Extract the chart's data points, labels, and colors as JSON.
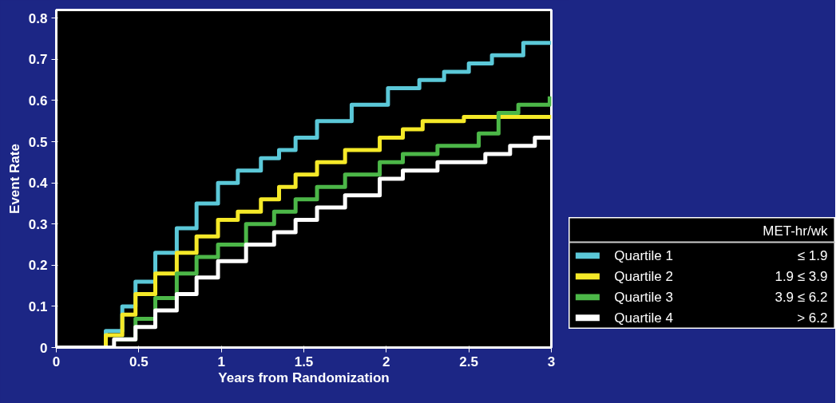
{
  "chart_data": {
    "type": "step",
    "xlabel": "Years from Randomization",
    "ylabel": "Event Rate",
    "xlim": [
      0,
      3
    ],
    "ylim": [
      0,
      0.82
    ],
    "xticks": [
      0,
      0.5,
      1,
      1.5,
      2,
      2.5,
      3
    ],
    "yticks": [
      0,
      0.1,
      0.2,
      0.3,
      0.4,
      0.5,
      0.6,
      0.7,
      0.8
    ],
    "grid": false,
    "legend": "right",
    "legend_title": "MET-hr/wk",
    "marker": "none",
    "line_style": "solid",
    "annotations": [
      "≤ 1.9",
      "1.9 ≤ 3.9",
      "3.9 ≤ 6.2",
      "> 6.2"
    ],
    "series": [
      {
        "name": "Quartile 1",
        "color": "#5bc8d8",
        "x": [
          0,
          0.25,
          0.3,
          0.4,
          0.48,
          0.6,
          0.73,
          0.85,
          0.98,
          1.1,
          1.24,
          1.35,
          1.45,
          1.58,
          1.79,
          2.01,
          2.2,
          2.35,
          2.5,
          2.64,
          2.83,
          3.0
        ],
        "values": [
          0,
          0,
          0.04,
          0.1,
          0.16,
          0.23,
          0.29,
          0.35,
          0.4,
          0.43,
          0.46,
          0.48,
          0.51,
          0.55,
          0.59,
          0.63,
          0.65,
          0.67,
          0.69,
          0.71,
          0.74,
          0.74
        ]
      },
      {
        "name": "Quartile 2",
        "color": "#f5e928",
        "x": [
          0,
          0.25,
          0.3,
          0.4,
          0.48,
          0.6,
          0.73,
          0.85,
          0.98,
          1.1,
          1.24,
          1.35,
          1.45,
          1.58,
          1.75,
          1.96,
          2.1,
          2.22,
          2.47,
          3.0
        ],
        "values": [
          0,
          0,
          0.03,
          0.08,
          0.13,
          0.18,
          0.23,
          0.27,
          0.31,
          0.33,
          0.36,
          0.39,
          0.42,
          0.45,
          0.48,
          0.51,
          0.53,
          0.55,
          0.56,
          0.56
        ]
      },
      {
        "name": "Quartile 3",
        "color": "#4cb748",
        "x": [
          0.35,
          0.48,
          0.6,
          0.73,
          0.85,
          0.98,
          1.15,
          1.32,
          1.45,
          1.58,
          1.75,
          1.96,
          2.1,
          2.31,
          2.56,
          2.68,
          2.8,
          2.99
        ],
        "values": [
          0.02,
          0.07,
          0.12,
          0.18,
          0.22,
          0.25,
          0.3,
          0.33,
          0.36,
          0.39,
          0.42,
          0.45,
          0.47,
          0.49,
          0.52,
          0.57,
          0.59,
          0.61
        ]
      },
      {
        "name": "Quartile 4",
        "color": "#ffffff",
        "x": [
          0,
          0.27,
          0.35,
          0.48,
          0.6,
          0.73,
          0.85,
          0.98,
          1.15,
          1.32,
          1.45,
          1.58,
          1.75,
          1.96,
          2.1,
          2.31,
          2.6,
          2.75,
          2.9,
          3.0
        ],
        "values": [
          0,
          0,
          0.02,
          0.05,
          0.09,
          0.13,
          0.17,
          0.21,
          0.25,
          0.28,
          0.31,
          0.34,
          0.37,
          0.41,
          0.43,
          0.45,
          0.47,
          0.49,
          0.51,
          0.51
        ]
      }
    ]
  }
}
